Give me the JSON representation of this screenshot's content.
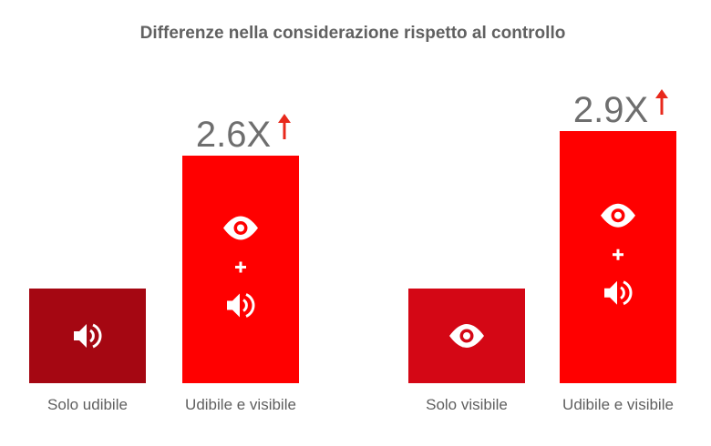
{
  "chart_data": {
    "type": "bar",
    "title": "Differenze nella considerazione rispetto al controllo",
    "xlabel": "",
    "ylabel": "",
    "ylim": [
      0,
      2.9
    ],
    "grid": false,
    "legend": "none",
    "groups": [
      {
        "categories": [
          "Solo udibile",
          "Udibile e visibile"
        ],
        "values": [
          1.0,
          2.6
        ],
        "colors": [
          "#a50712",
          "#ff0000"
        ],
        "icons": [
          [
            "speaker-icon"
          ],
          [
            "eye-icon",
            "plus-icon",
            "speaker-icon"
          ]
        ],
        "multiplier_label": "2.6X"
      },
      {
        "categories": [
          "Solo visibile",
          "Udibile e visibile"
        ],
        "values": [
          1.0,
          2.9
        ],
        "colors": [
          "#d40715",
          "#ff0000"
        ],
        "icons": [
          [
            "eye-icon"
          ],
          [
            "eye-icon",
            "plus-icon",
            "speaker-icon"
          ]
        ],
        "multiplier_label": "2.9X"
      }
    ],
    "arrow_color": "#e8291c"
  }
}
